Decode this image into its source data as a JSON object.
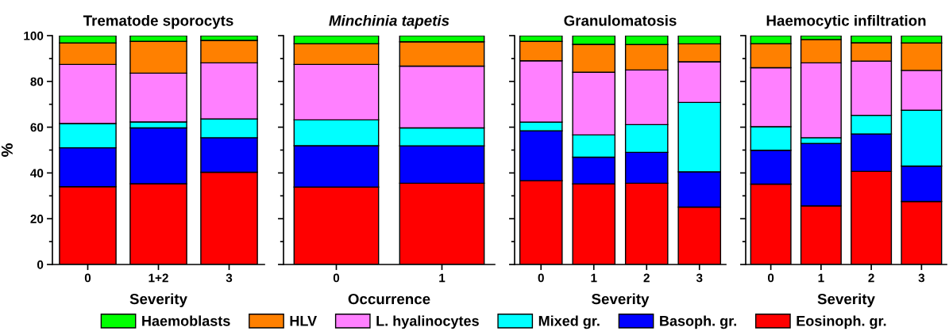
{
  "chart_data": [
    {
      "type": "bar",
      "stacked": true,
      "title": "Trematode sporocyts",
      "xlabel": "Severity",
      "ylabel": "%",
      "categories": [
        "0",
        "1+2",
        "3"
      ],
      "ylim": [
        0,
        100
      ],
      "yticks": [
        0,
        {
          "value": 10,
          "label": null
        },
        20,
        {
          "value": 30,
          "label": null
        },
        40,
        {
          "value": 50,
          "label": null
        },
        60,
        {
          "value": 70,
          "label": null
        },
        80,
        {
          "value": 90,
          "label": null
        },
        100
      ],
      "legend": "bottom",
      "series": [
        {
          "name": "Eosinoph. gr.",
          "color": "#ff0000",
          "values": [
            34.0,
            35.3,
            40.3
          ]
        },
        {
          "name": "Basoph. gr.",
          "color": "#0000ff",
          "values": [
            17.0,
            24.4,
            15.1
          ]
        },
        {
          "name": "Mixed gr.",
          "color": "#00ffff",
          "values": [
            10.6,
            2.6,
            8.2
          ]
        },
        {
          "name": "L. hyalinocytes",
          "color": "#ff80ff",
          "values": [
            25.8,
            21.3,
            24.5
          ]
        },
        {
          "name": "HLV",
          "color": "#ff8000",
          "values": [
            9.4,
            13.9,
            9.8
          ]
        },
        {
          "name": "Haemoblasts",
          "color": "#00ff00",
          "values": [
            3.2,
            2.5,
            2.1
          ]
        }
      ]
    },
    {
      "type": "bar",
      "stacked": true,
      "title": "Minchinia tapetis",
      "xlabel": "Occurrence",
      "categories": [
        "0",
        "1"
      ],
      "ylim": [
        0,
        100
      ],
      "yticks": [
        0,
        {
          "value": 10,
          "label": null
        },
        20,
        {
          "value": 30,
          "label": null
        },
        40,
        {
          "value": 50,
          "label": null
        },
        60,
        {
          "value": 70,
          "label": null
        },
        80,
        {
          "value": 90,
          "label": null
        },
        100
      ],
      "tick_labels": "x",
      "series": [
        {
          "color": "#ff0000",
          "values": [
            33.8,
            35.5
          ]
        },
        {
          "color": "#0000ff",
          "values": [
            18.1,
            16.3
          ]
        },
        {
          "color": "#00ffff",
          "values": [
            11.3,
            7.9
          ]
        },
        {
          "color": "#ff80ff",
          "values": [
            24.2,
            27.0
          ]
        },
        {
          "color": "#ff8000",
          "values": [
            9.1,
            10.6
          ]
        },
        {
          "color": "#00ff00",
          "values": [
            3.5,
            2.7
          ]
        }
      ]
    },
    {
      "type": "bar",
      "stacked": true,
      "title": "Granulomatosis",
      "xlabel": "Severity",
      "categories": [
        "0",
        "1",
        "2",
        "3"
      ],
      "ylim": [
        0,
        100
      ],
      "yticks": [
        0,
        {
          "value": 10,
          "label": null
        },
        20,
        {
          "value": 30,
          "label": null
        },
        40,
        {
          "value": 50,
          "label": null
        },
        60,
        {
          "value": 70,
          "label": null
        },
        80,
        {
          "value": 90,
          "label": null
        },
        100
      ],
      "tick_labels": "x",
      "series": [
        {
          "color": "#ff0000",
          "values": [
            36.6,
            35.2,
            35.5,
            25.1
          ]
        },
        {
          "color": "#0000ff",
          "values": [
            21.8,
            11.7,
            13.5,
            15.4
          ]
        },
        {
          "color": "#00ffff",
          "values": [
            3.8,
            9.7,
            12.1,
            30.3
          ]
        },
        {
          "color": "#ff80ff",
          "values": [
            26.8,
            27.4,
            23.9,
            17.8
          ]
        },
        {
          "color": "#ff8000",
          "values": [
            8.5,
            12.2,
            11.1,
            7.8
          ]
        },
        {
          "color": "#00ff00",
          "values": [
            2.5,
            3.8,
            3.9,
            3.6
          ]
        }
      ]
    },
    {
      "type": "bar",
      "stacked": true,
      "title": "Haemocytic infiltration",
      "xlabel": "Severity",
      "categories": [
        "0",
        "1",
        "2",
        "3"
      ],
      "ylim": [
        0,
        100
      ],
      "yticks": [
        0,
        {
          "value": 10,
          "label": null
        },
        20,
        {
          "value": 30,
          "label": null
        },
        40,
        {
          "value": 50,
          "label": null
        },
        60,
        {
          "value": 70,
          "label": null
        },
        80,
        {
          "value": 90,
          "label": null
        },
        100
      ],
      "tick_labels": "x",
      "series": [
        {
          "color": "#ff0000",
          "values": [
            35.1,
            25.6,
            40.7,
            27.5
          ]
        },
        {
          "color": "#0000ff",
          "values": [
            14.8,
            27.3,
            16.3,
            15.5
          ]
        },
        {
          "color": "#00ffff",
          "values": [
            10.3,
            2.5,
            8.2,
            24.4
          ]
        },
        {
          "color": "#ff80ff",
          "values": [
            25.8,
            32.7,
            23.7,
            17.4
          ]
        },
        {
          "color": "#ff8000",
          "values": [
            10.5,
            10.2,
            8.0,
            12.0
          ]
        },
        {
          "color": "#00ff00",
          "values": [
            3.5,
            1.7,
            3.1,
            3.2
          ]
        }
      ]
    }
  ]
}
